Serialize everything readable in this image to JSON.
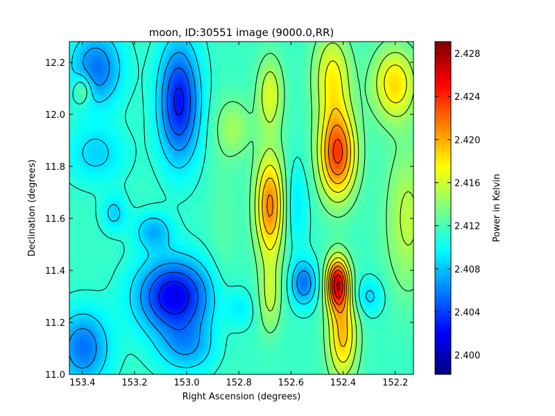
{
  "chart_data": {
    "type": "heatmap",
    "title": "moon, ID:30551 image (9000.0,RR)",
    "xlabel": "Right Ascension (degrees)",
    "ylabel": "Declination (degrees)",
    "xlim": [
      153.45,
      152.13
    ],
    "ylim": [
      11.0,
      12.28
    ],
    "x_inverted": true,
    "xticks": [
      153.4,
      153.2,
      153.0,
      152.8,
      152.6,
      152.4,
      152.2
    ],
    "xtick_labels": [
      "153.4",
      "153.2",
      "153.0",
      "152.8",
      "152.6",
      "152.4",
      "152.2"
    ],
    "yticks": [
      11.0,
      11.2,
      11.4,
      11.6,
      11.8,
      12.0,
      12.2
    ],
    "ytick_labels": [
      "11.0",
      "11.2",
      "11.4",
      "11.6",
      "11.8",
      "12.0",
      "12.2"
    ],
    "colorbar": {
      "label": "Power in Kelvin",
      "vmin": 2.3982,
      "vmax": 2.4291,
      "ticks": [
        2.4,
        2.404,
        2.408,
        2.412,
        2.416,
        2.42,
        2.424,
        2.428
      ],
      "tick_labels": [
        "2.400",
        "2.404",
        "2.408",
        "2.412",
        "2.416",
        "2.420",
        "2.424",
        "2.428"
      ],
      "colormap": "jet"
    },
    "contours": true,
    "contour_color": "#000000",
    "field": {
      "base": 2.4115,
      "components": [
        {
          "ra": 153.03,
          "dec": 12.05,
          "amp": -0.009,
          "sra": 0.055,
          "sdec": 0.16
        },
        {
          "ra": 153.35,
          "dec": 12.18,
          "amp": -0.006,
          "sra": 0.07,
          "sdec": 0.1
        },
        {
          "ra": 153.05,
          "dec": 11.3,
          "amp": -0.01,
          "sra": 0.1,
          "sdec": 0.1
        },
        {
          "ra": 153.4,
          "dec": 11.1,
          "amp": -0.006,
          "sra": 0.07,
          "sdec": 0.1
        },
        {
          "ra": 153.13,
          "dec": 11.55,
          "amp": -0.004,
          "sra": 0.05,
          "sdec": 0.05
        },
        {
          "ra": 153.35,
          "dec": 11.85,
          "amp": -0.003,
          "sra": 0.08,
          "sdec": 0.08
        },
        {
          "ra": 153.0,
          "dec": 11.1,
          "amp": -0.004,
          "sra": 0.08,
          "sdec": 0.07
        },
        {
          "ra": 152.68,
          "dec": 11.65,
          "amp": 0.01,
          "sra": 0.04,
          "sdec": 0.14
        },
        {
          "ra": 152.68,
          "dec": 12.08,
          "amp": 0.005,
          "sra": 0.035,
          "sdec": 0.1
        },
        {
          "ra": 152.68,
          "dec": 11.3,
          "amp": 0.004,
          "sra": 0.03,
          "sdec": 0.1
        },
        {
          "ra": 152.42,
          "dec": 11.85,
          "amp": 0.012,
          "sra": 0.05,
          "sdec": 0.12
        },
        {
          "ra": 152.42,
          "dec": 11.35,
          "amp": 0.014,
          "sra": 0.03,
          "sdec": 0.07
        },
        {
          "ra": 152.4,
          "dec": 11.15,
          "amp": 0.008,
          "sra": 0.04,
          "sdec": 0.12
        },
        {
          "ra": 152.44,
          "dec": 12.15,
          "amp": 0.006,
          "sra": 0.05,
          "sdec": 0.12
        },
        {
          "ra": 152.2,
          "dec": 12.12,
          "amp": 0.007,
          "sra": 0.06,
          "sdec": 0.1
        },
        {
          "ra": 152.15,
          "dec": 11.6,
          "amp": 0.004,
          "sra": 0.06,
          "sdec": 0.2
        },
        {
          "ra": 152.55,
          "dec": 11.35,
          "amp": -0.006,
          "sra": 0.035,
          "sdec": 0.06
        },
        {
          "ra": 152.3,
          "dec": 11.3,
          "amp": -0.003,
          "sra": 0.04,
          "sdec": 0.05
        },
        {
          "ra": 152.58,
          "dec": 11.65,
          "amp": -0.0025,
          "sra": 0.035,
          "sdec": 0.12
        },
        {
          "ra": 152.82,
          "dec": 11.95,
          "amp": 0.003,
          "sra": 0.05,
          "sdec": 0.08
        },
        {
          "ra": 152.86,
          "dec": 11.5,
          "amp": 0.001,
          "sra": 0.04,
          "sdec": 0.3
        },
        {
          "ra": 152.8,
          "dec": 11.25,
          "amp": -0.002,
          "sra": 0.04,
          "sdec": 0.05
        },
        {
          "ra": 153.28,
          "dec": 11.62,
          "amp": -0.003,
          "sra": 0.035,
          "sdec": 0.05
        },
        {
          "ra": 153.4,
          "dec": 12.1,
          "amp": 0.004,
          "sra": 0.025,
          "sdec": 0.04
        }
      ]
    }
  }
}
